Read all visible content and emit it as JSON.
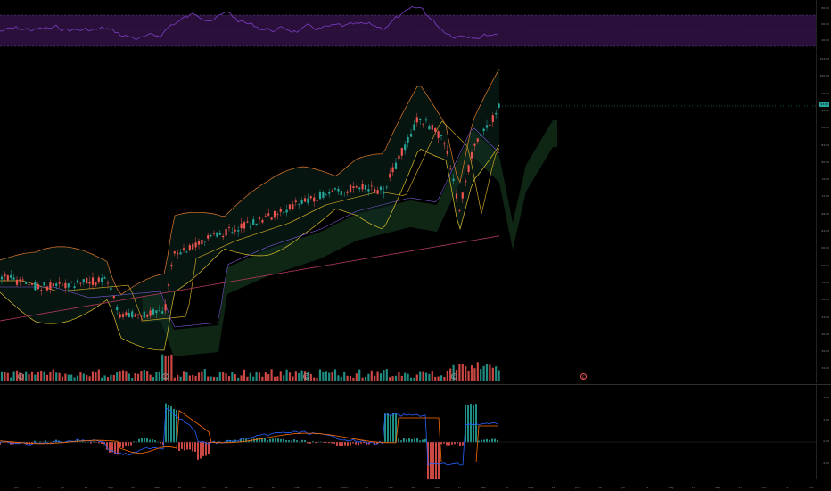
{
  "rsi_pane": {
    "axis_ticks": [
      "80.00",
      "60.00",
      "40.00"
    ],
    "band_color": "#2a0f3a",
    "line_color": "#7b3fc4"
  },
  "price_pane": {
    "axis_ticks": [
      "104.00",
      "100.00",
      "96.00",
      "92.00",
      "88.00",
      "84.00",
      "80.00",
      "76.00",
      "72.00",
      "68.00",
      "64.00",
      "60.00",
      "56.00",
      "52.00",
      "48.00",
      "44.00",
      "40.00",
      "36.00",
      "32.00"
    ],
    "last_price": "93.97",
    "up_color": "#26a69a",
    "down_color": "#ef5350"
  },
  "event_markers": [
    "E",
    "E",
    "E",
    "E",
    "E"
  ],
  "macd_pane": {
    "axis_ticks": [
      "4.00",
      "2.00",
      "0.00",
      "-2.00"
    ]
  },
  "time_axis": {
    "labels": [
      "Jun",
      "17",
      "Jul",
      "15",
      "Aug",
      "19",
      "Sep",
      "16",
      "Oct",
      "14",
      "Nov",
      "18",
      "Dec",
      "16",
      "2025",
      "13",
      "Feb",
      "18",
      "Mar",
      "17",
      "Apr",
      "14",
      "May",
      "19",
      "Jun",
      "16",
      "Jul",
      "14",
      "Aug",
      "18",
      "Sep",
      "15",
      "Oct",
      "13",
      "Nov"
    ]
  }
}
